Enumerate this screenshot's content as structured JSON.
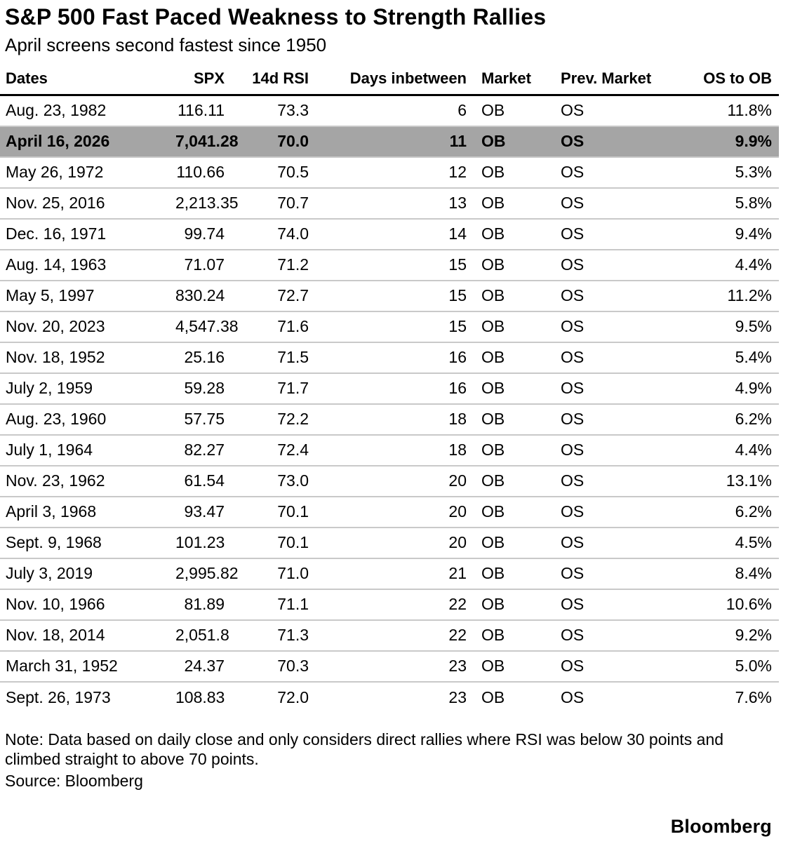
{
  "title": "S&P 500 Fast Paced Weakness to Strength Rallies",
  "subtitle": "April screens second fastest since 1950",
  "chart_data": {
    "type": "table",
    "columns": [
      "Dates",
      "SPX",
      "14d RSI",
      "Days inbetween",
      "Market",
      "Prev. Market",
      "OS to OB"
    ],
    "column_aligns": [
      "left",
      "right",
      "right",
      "right",
      "left",
      "left",
      "right"
    ],
    "highlight_row_index": 1,
    "rows": [
      [
        "Aug. 23, 1982",
        "116.11",
        "73.3",
        "6",
        "OB",
        "OS",
        "11.8%"
      ],
      [
        "April 16, 2026",
        "7,041.28",
        "70.0",
        "11",
        "OB",
        "OS",
        "9.9%"
      ],
      [
        "May 26, 1972",
        "110.66",
        "70.5",
        "12",
        "OB",
        "OS",
        "5.3%"
      ],
      [
        "Nov. 25, 2016",
        "2,213.35",
        "70.7",
        "13",
        "OB",
        "OS",
        "5.8%"
      ],
      [
        "Dec. 16, 1971",
        "99.74",
        "74.0",
        "14",
        "OB",
        "OS",
        "9.4%"
      ],
      [
        "Aug. 14, 1963",
        "71.07",
        "71.2",
        "15",
        "OB",
        "OS",
        "4.4%"
      ],
      [
        "May 5, 1997",
        "830.24",
        "72.7",
        "15",
        "OB",
        "OS",
        "11.2%"
      ],
      [
        "Nov. 20, 2023",
        "4,547.38",
        "71.6",
        "15",
        "OB",
        "OS",
        "9.5%"
      ],
      [
        "Nov. 18, 1952",
        "25.16",
        "71.5",
        "16",
        "OB",
        "OS",
        "5.4%"
      ],
      [
        "July 2, 1959",
        "59.28",
        "71.7",
        "16",
        "OB",
        "OS",
        "4.9%"
      ],
      [
        "Aug. 23, 1960",
        "57.75",
        "72.2",
        "18",
        "OB",
        "OS",
        "6.2%"
      ],
      [
        "July 1, 1964",
        "82.27",
        "72.4",
        "18",
        "OB",
        "OS",
        "4.4%"
      ],
      [
        "Nov. 23, 1962",
        "61.54",
        "73.0",
        "20",
        "OB",
        "OS",
        "13.1%"
      ],
      [
        "April 3, 1968",
        "93.47",
        "70.1",
        "20",
        "OB",
        "OS",
        "6.2%"
      ],
      [
        "Sept. 9, 1968",
        "101.23",
        "70.1",
        "20",
        "OB",
        "OS",
        "4.5%"
      ],
      [
        "July 3, 2019",
        "2,995.82",
        "71.0",
        "21",
        "OB",
        "OS",
        "8.4%"
      ],
      [
        "Nov. 10, 1966",
        "81.89",
        "71.1",
        "22",
        "OB",
        "OS",
        "10.6%"
      ],
      [
        "Nov. 18, 2014",
        "2,051.8",
        "71.3",
        "22",
        "OB",
        "OS",
        "9.2%"
      ],
      [
        "March 31, 1952",
        "24.37",
        "70.3",
        "23",
        "OB",
        "OS",
        "5.0%"
      ],
      [
        "Sept. 26, 1973",
        "108.83",
        "72.0",
        "23",
        "OB",
        "OS",
        "7.6%"
      ]
    ]
  },
  "footer": {
    "note": "Note: Data based on daily close and only considers direct rallies where RSI was below 30 points and climbed straight to above 70 points.",
    "source": "Source: Bloomberg",
    "logo": "Bloomberg"
  },
  "colors": {
    "text": "#000000",
    "background": "#ffffff",
    "highlight_row_bg": "#a5a5a5",
    "row_divider": "#c9c9c9",
    "header_underline": "#000000"
  }
}
